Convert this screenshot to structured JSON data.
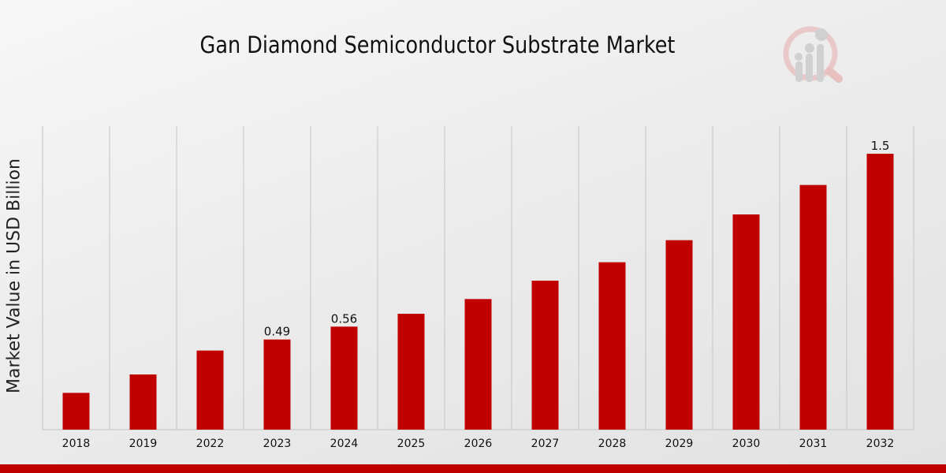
{
  "chart_data": {
    "type": "bar",
    "title": "Gan Diamond Semiconductor Substrate Market",
    "xlabel": "",
    "ylabel": "Market Value in USD Billion",
    "categories": [
      "2018",
      "2019",
      "2022",
      "2023",
      "2024",
      "2025",
      "2026",
      "2027",
      "2028",
      "2029",
      "2030",
      "2031",
      "2032"
    ],
    "values": [
      0.2,
      0.3,
      0.43,
      0.49,
      0.56,
      0.63,
      0.71,
      0.81,
      0.91,
      1.03,
      1.17,
      1.33,
      1.5
    ],
    "data_labels": {
      "3": "0.49",
      "4": "0.56",
      "12": "1.5"
    },
    "ylim": [
      0,
      1.65
    ],
    "grid": "vertical",
    "bar_color": "#c00000"
  }
}
